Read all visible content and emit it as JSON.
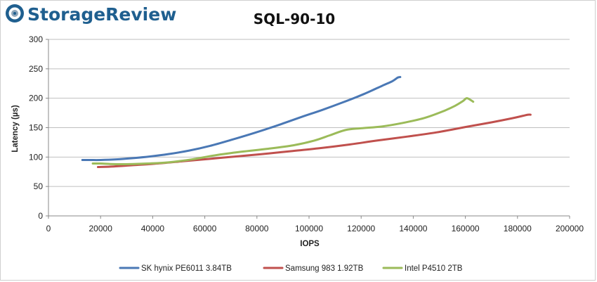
{
  "brand": {
    "name": "StorageReview",
    "icon": "storage-review-logo-icon",
    "color": "#1f5f8f"
  },
  "chart_data": {
    "type": "line",
    "title": "SQL-90-10",
    "xlabel": "IOPS",
    "ylabel": "Latency (µs)",
    "xlim": [
      0,
      200000
    ],
    "ylim": [
      0,
      300
    ],
    "xticks": [
      0,
      20000,
      40000,
      60000,
      80000,
      100000,
      120000,
      140000,
      160000,
      180000,
      200000
    ],
    "yticks": [
      0,
      50,
      100,
      150,
      200,
      250,
      300
    ],
    "grid": "horizontal",
    "legend_position": "bottom",
    "series": [
      {
        "name": "SK hynix PE6011 3.84TB",
        "color": "#4a78b5",
        "x": [
          13000,
          16000,
          20000,
          26000,
          32000,
          39000,
          46000,
          54000,
          62000,
          70000,
          79000,
          88000,
          97000,
          105000,
          113000,
          121000,
          128000,
          132000,
          134000,
          135000
        ],
        "y": [
          95,
          95,
          95,
          96,
          98,
          101,
          105,
          111,
          119,
          129,
          141,
          154,
          168,
          180,
          193,
          207,
          221,
          229,
          235,
          236
        ]
      },
      {
        "name": "Samsung 983 1.92TB",
        "color": "#c0504d",
        "x": [
          19000,
          25000,
          32000,
          42000,
          52000,
          62000,
          72000,
          82000,
          93000,
          104000,
          115000,
          126000,
          138000,
          149000,
          160000,
          170000,
          178000,
          182000,
          184000,
          185000
        ],
        "y": [
          83,
          84,
          86,
          89,
          93,
          97,
          101,
          105,
          110,
          115,
          121,
          128,
          135,
          142,
          151,
          159,
          166,
          170,
          172,
          172
        ]
      },
      {
        "name": "Intel P4510 2TB",
        "color": "#9bbb59",
        "x": [
          17000,
          20000,
          25000,
          31000,
          38000,
          46000,
          55000,
          64000,
          74000,
          84000,
          94000,
          102000,
          108000,
          114000,
          120000,
          128000,
          136000,
          144000,
          151000,
          156000,
          159000,
          160500,
          162000,
          163000
        ],
        "y": [
          89,
          89,
          88,
          88,
          89,
          91,
          96,
          103,
          109,
          114,
          120,
          128,
          137,
          146,
          149,
          152,
          158,
          166,
          177,
          187,
          195,
          200,
          197,
          194
        ]
      }
    ]
  }
}
